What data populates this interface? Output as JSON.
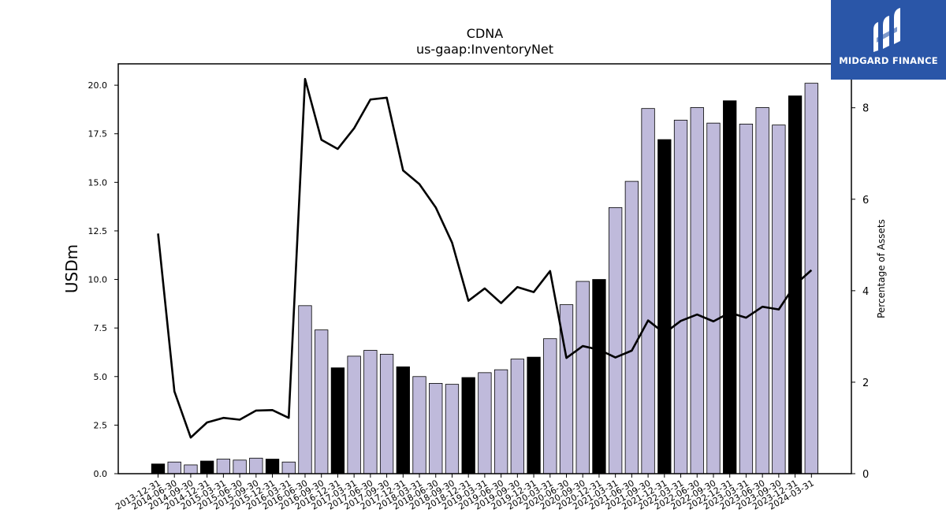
{
  "chart_data": {
    "type": "bar",
    "title": "CDNA",
    "subtitle": "us-gaap:InventoryNet",
    "ylabel": "USDm",
    "y2label": "Percentage of Assets",
    "ylim": [
      0,
      21.1
    ],
    "y2lim": [
      0,
      8.96
    ],
    "yticks": [
      "0.0",
      "2.5",
      "5.0",
      "7.5",
      "10.0",
      "12.5",
      "15.0",
      "17.5",
      "20.0"
    ],
    "y2ticks": [
      "0",
      "2",
      "4",
      "6",
      "8"
    ],
    "categories": [
      "2013-12-31",
      "2014-06-30",
      "2014-09-30",
      "2014-12-31",
      "2015-03-31",
      "2015-06-30",
      "2015-09-30",
      "2015-12-31",
      "2016-03-31",
      "2016-06-30",
      "2016-09-30",
      "2016-12-31",
      "2017-03-31",
      "2017-06-30",
      "2017-09-30",
      "2017-12-31",
      "2018-03-31",
      "2018-06-30",
      "2018-09-30",
      "2018-12-31",
      "2019-03-31",
      "2019-06-30",
      "2019-09-30",
      "2019-12-31",
      "2020-03-31",
      "2020-06-30",
      "2020-09-30",
      "2020-12-31",
      "2021-03-31",
      "2021-06-30",
      "2021-09-30",
      "2021-12-31",
      "2022-03-31",
      "2022-06-30",
      "2022-09-30",
      "2022-12-31",
      "2023-03-31",
      "2023-06-30",
      "2023-09-30",
      "2023-12-31",
      "2024-03-31"
    ],
    "series": [
      {
        "type": "bar",
        "values": [
          0.5,
          0.6,
          0.45,
          0.65,
          0.75,
          0.7,
          0.8,
          0.75,
          0.6,
          8.65,
          7.4,
          5.45,
          6.05,
          6.35,
          6.15,
          5.5,
          5.0,
          4.65,
          4.6,
          4.95,
          5.2,
          5.35,
          5.9,
          6.0,
          6.95,
          8.7,
          9.9,
          10.0,
          13.7,
          15.05,
          18.8,
          17.2,
          18.2,
          18.85,
          18.05,
          19.2,
          18.0,
          18.85,
          17.95,
          19.45,
          20.1
        ],
        "highlight": [
          true,
          false,
          false,
          true,
          false,
          false,
          false,
          true,
          false,
          false,
          false,
          true,
          false,
          false,
          false,
          true,
          false,
          false,
          false,
          true,
          false,
          false,
          false,
          true,
          false,
          false,
          false,
          true,
          false,
          false,
          false,
          true,
          false,
          false,
          false,
          true,
          false,
          false,
          false,
          true,
          false
        ]
      },
      {
        "type": "line",
        "axis": "right",
        "values": [
          5.25,
          1.8,
          0.79,
          1.12,
          1.22,
          1.18,
          1.38,
          1.39,
          1.22,
          8.63,
          7.3,
          7.1,
          7.55,
          8.18,
          8.22,
          6.63,
          6.33,
          5.82,
          5.05,
          3.78,
          4.05,
          3.73,
          4.08,
          3.97,
          4.43,
          2.53,
          2.79,
          2.71,
          2.54,
          2.69,
          3.35,
          3.07,
          3.34,
          3.48,
          3.33,
          3.52,
          3.41,
          3.65,
          3.59,
          4.13,
          4.45
        ]
      }
    ],
    "colors": {
      "bar": "#bfbadb",
      "bar_highlight": "#000000",
      "line": "#000000"
    }
  },
  "brand": {
    "name": "MIDGARD FINANCE",
    "color": "#2a56a8"
  }
}
